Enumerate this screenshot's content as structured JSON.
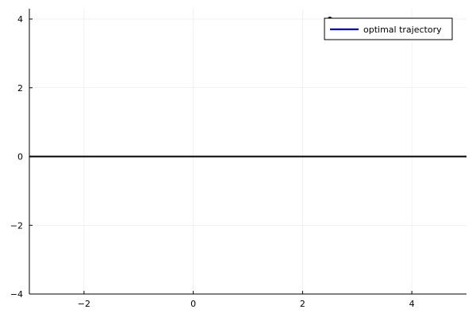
{
  "chart_data": {
    "type": "line",
    "title": "",
    "xlabel": "",
    "ylabel": "",
    "xlim": [
      -3,
      5
    ],
    "ylim": [
      -4,
      4.3
    ],
    "x_ticks": [
      -2,
      0,
      2,
      4
    ],
    "y_ticks": [
      -4,
      -2,
      0,
      2,
      4
    ],
    "x_tick_labels": [
      "−2",
      "0",
      "2",
      "4"
    ],
    "y_tick_labels": [
      "−4",
      "−2",
      "0",
      "2",
      "4"
    ],
    "grid": true,
    "legend_position": "top-right",
    "series": [
      {
        "name": "optimal trajectory",
        "color": "#0000ff",
        "x": [
          2.5
        ],
        "y": [
          4.0
        ]
      }
    ],
    "reference_lines": [
      {
        "orientation": "horizontal",
        "y": 0,
        "color": "#000000"
      }
    ]
  }
}
